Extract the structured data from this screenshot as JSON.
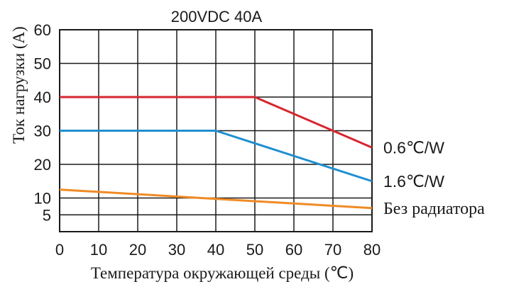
{
  "chart_data": {
    "type": "line",
    "title": "200VDC 40A",
    "xlabel": "Температура окружающей среды (℃)",
    "ylabel": "Ток нагрузки (А)",
    "xlim": [
      0,
      80
    ],
    "ylim": [
      0,
      60
    ],
    "x_ticks": [
      "0",
      "10",
      "20",
      "30",
      "40",
      "50",
      "60",
      "70",
      "80"
    ],
    "y_ticks": [
      "5",
      "10",
      "20",
      "30",
      "40",
      "50",
      "60"
    ],
    "grid": true,
    "series": [
      {
        "name": "0.6℃/W",
        "color": "#d7262e",
        "points": [
          [
            0,
            40
          ],
          [
            50,
            40
          ],
          [
            80,
            25
          ]
        ]
      },
      {
        "name": "1.6℃/W",
        "color": "#1f8fd0",
        "points": [
          [
            0,
            30
          ],
          [
            40,
            30
          ],
          [
            80,
            15
          ]
        ]
      },
      {
        "name": "Без радиатора",
        "color": "#f08a24",
        "points": [
          [
            0,
            12.5
          ],
          [
            80,
            7
          ]
        ]
      }
    ]
  }
}
